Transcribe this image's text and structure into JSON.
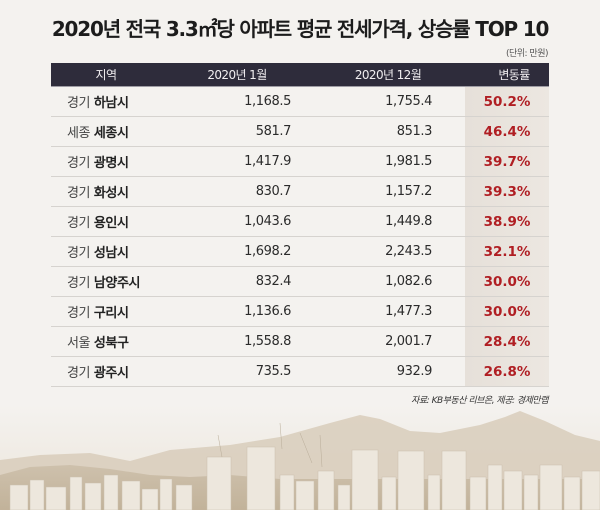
{
  "title": "2020년 전국 3.3㎡당 아파트 평균 전세가격, 상승률 TOP 10",
  "unit": "(단위: 만원)",
  "columns": [
    "지역",
    "2020년 1월",
    "2020년 12월",
    "변동률"
  ],
  "rows": [
    {
      "province": "경기",
      "city": "하남시",
      "jan": "1,168.5",
      "dec": "1,755.4",
      "change": "50.2%"
    },
    {
      "province": "세종",
      "city": "세종시",
      "jan": "581.7",
      "dec": "851.3",
      "change": "46.4%"
    },
    {
      "province": "경기",
      "city": "광명시",
      "jan": "1,417.9",
      "dec": "1,981.5",
      "change": "39.7%"
    },
    {
      "province": "경기",
      "city": "화성시",
      "jan": "830.7",
      "dec": "1,157.2",
      "change": "39.3%"
    },
    {
      "province": "경기",
      "city": "용인시",
      "jan": "1,043.6",
      "dec": "1,449.8",
      "change": "38.9%"
    },
    {
      "province": "경기",
      "city": "성남시",
      "jan": "1,698.2",
      "dec": "2,243.5",
      "change": "32.1%"
    },
    {
      "province": "경기",
      "city": "남양주시",
      "jan": "832.4",
      "dec": "1,082.6",
      "change": "30.0%"
    },
    {
      "province": "경기",
      "city": "구리시",
      "jan": "1,136.6",
      "dec": "1,477.3",
      "change": "30.0%"
    },
    {
      "province": "서울",
      "city": "성북구",
      "jan": "1,558.8",
      "dec": "2,001.7",
      "change": "28.4%"
    },
    {
      "province": "경기",
      "city": "광주시",
      "jan": "735.5",
      "dec": "932.9",
      "change": "26.8%"
    }
  ],
  "source": "자료: KB부동산 리브온, 제공: 경제만랩",
  "colors": {
    "header_bg": "#2e2c3b",
    "change_text": "#b01e23",
    "page_bg": "#f4f2ef"
  },
  "chart_data": {
    "type": "table",
    "title": "2020년 전국 3.3㎡당 아파트 평균 전세가격, 상승률 TOP 10",
    "unit": "만원",
    "columns": [
      "지역",
      "2020년 1월",
      "2020년 12월",
      "변동률"
    ],
    "categories": [
      "경기 하남시",
      "세종 세종시",
      "경기 광명시",
      "경기 화성시",
      "경기 용인시",
      "경기 성남시",
      "경기 남양주시",
      "경기 구리시",
      "서울 성북구",
      "경기 광주시"
    ],
    "series": [
      {
        "name": "2020년 1월",
        "values": [
          1168.5,
          581.7,
          1417.9,
          830.7,
          1043.6,
          1698.2,
          832.4,
          1136.6,
          1558.8,
          735.5
        ]
      },
      {
        "name": "2020년 12월",
        "values": [
          1755.4,
          851.3,
          1981.5,
          1157.2,
          1449.8,
          2243.5,
          1082.6,
          1477.3,
          2001.7,
          932.9
        ]
      },
      {
        "name": "변동률 (%)",
        "values": [
          50.2,
          46.4,
          39.7,
          39.3,
          38.9,
          32.1,
          30.0,
          30.0,
          28.4,
          26.8
        ]
      }
    ],
    "source": "자료: KB부동산 리브온, 제공: 경제만랩"
  }
}
